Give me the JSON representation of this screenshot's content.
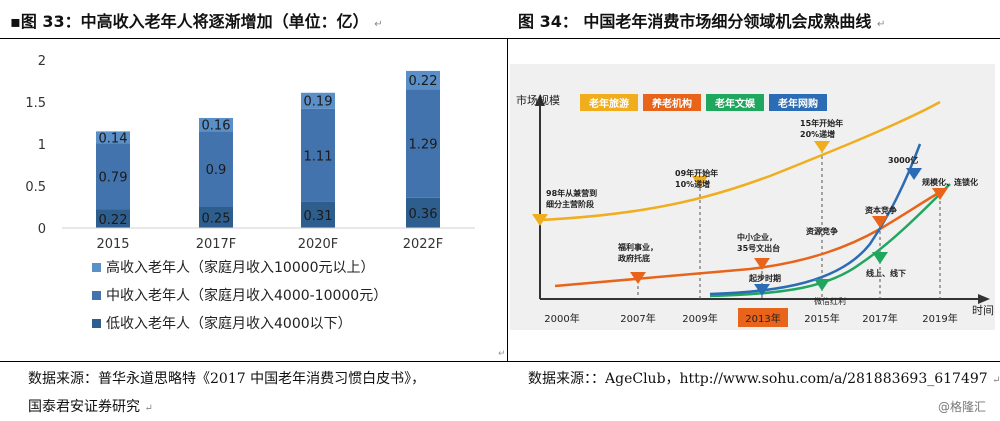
{
  "left": {
    "title": "图 33：中高收入老年人将逐渐增加（单位：亿）",
    "bullet": "▪",
    "mark": "↵",
    "source_line1": "数据来源：普华永道思略特《2017 中国老年消费习惯白皮书》，",
    "source_line2": "国泰君安证券研究",
    "colors": {
      "high": "#5A8FC7",
      "mid": "#4373AC",
      "low": "#2E5E8E"
    }
  },
  "right": {
    "title": "图 34：  中国老年消费市场细分领域机会成熟曲线",
    "mark": "↵",
    "source": "数据来源：：AgeClub，http://www.sohu.com/a/281883693_617497",
    "watermark": "@格隆汇",
    "diagram": {
      "y_axis_label": "市场规模",
      "x_axis_label": "时间",
      "years": [
        "2000年",
        "2007年",
        "2009年",
        "2013年",
        "2015年",
        "2017年",
        "2019年"
      ],
      "legend": [
        "老年旅游",
        "养老机构",
        "老年文娱",
        "老年网购"
      ],
      "legend_colors": [
        "#F0AE1E",
        "#E8641B",
        "#1FA75E",
        "#2B6CB4"
      ],
      "annotations": [
        "98年从兼营到",
        "细分主营阶段",
        "09年开始年",
        "10%递增",
        "15年开始年",
        "20%递增",
        "福利事业，",
        "政府托底",
        "中小企业，",
        "35号文出台",
        "资源竞争",
        "资本竞争",
        "3000亿",
        "规模化、连锁化",
        "起步时期",
        "微信红利",
        "线上、线下"
      ]
    }
  },
  "chart_data": {
    "type": "bar",
    "stacked": true,
    "categories": [
      "2015",
      "2017F",
      "2020F",
      "2022F"
    ],
    "series": [
      {
        "name": "低收入老年人（家庭月收入4000以下）",
        "values": [
          0.22,
          0.25,
          0.31,
          0.36
        ]
      },
      {
        "name": "中收入老年人（家庭月收入4000-10000元）",
        "values": [
          0.79,
          0.9,
          1.11,
          1.29
        ]
      },
      {
        "name": "高收入老年人（家庭月收入10000元以上）",
        "values": [
          0.14,
          0.16,
          0.19,
          0.22
        ]
      }
    ],
    "yticks": [
      "0",
      "0.5",
      "1",
      "1.5",
      "2"
    ],
    "ylim": [
      0,
      2
    ],
    "legend_position": "bottom"
  }
}
